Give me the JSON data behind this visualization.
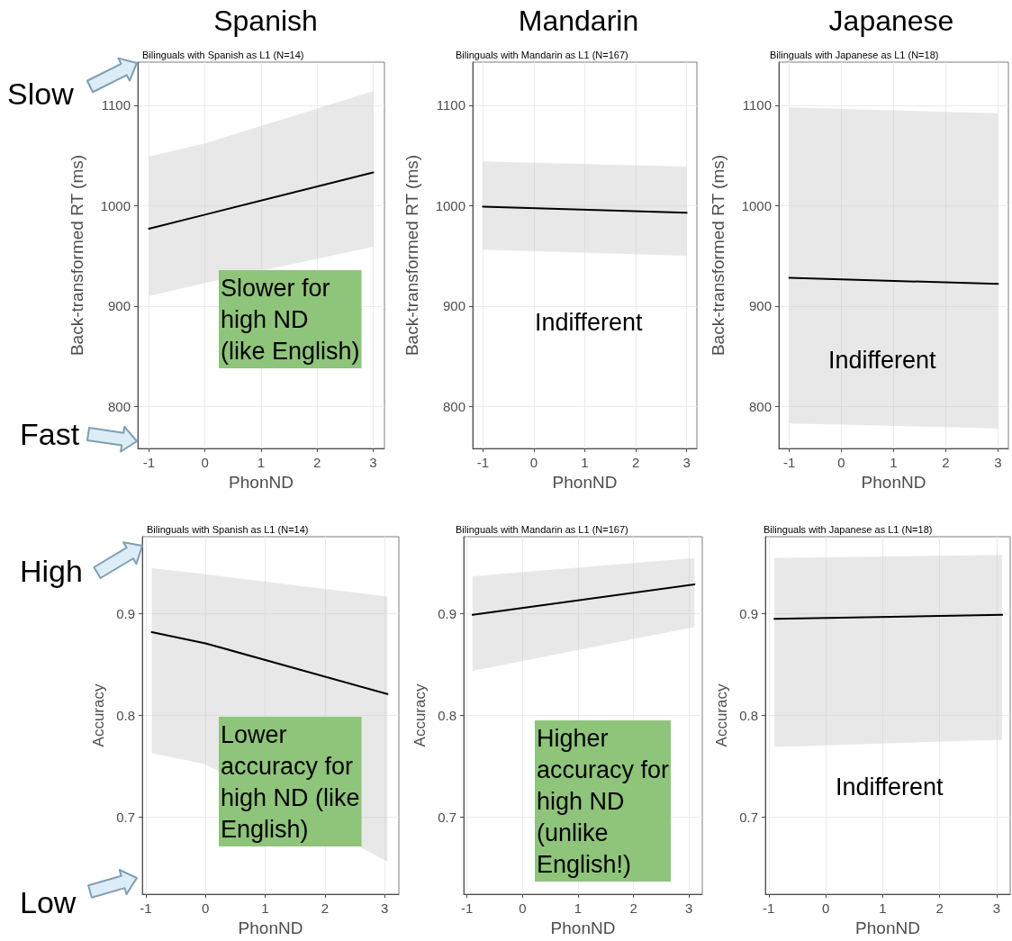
{
  "chart_data": [
    {
      "type": "line",
      "title": "Spanish",
      "subtitle": "Bilinguals with Spanish as L1 (N=14)",
      "xlabel": "PhonND",
      "ylabel": "Back-transformed RT (ms)",
      "x": [
        -1,
        0,
        3
      ],
      "series": [
        {
          "color": "#000000",
          "values": [
            977,
            991,
            1033
          ],
          "lower": [
            910,
            923,
            959
          ],
          "upper": [
            1049,
            1062,
            1114
          ]
        }
      ],
      "xlim": [
        -1.2,
        3.2
      ],
      "ylim": [
        758,
        1143
      ],
      "xticks": [
        -1,
        0,
        1,
        2,
        3
      ],
      "yticks": [
        800,
        900,
        1000,
        1100
      ],
      "grid": true,
      "marker": "none",
      "line_style": "solid",
      "annotations": [
        "Slow",
        "Fast",
        "Slower for\nhigh ND\n(like English)"
      ]
    },
    {
      "type": "line",
      "title": "Mandarin",
      "subtitle": "Bilinguals with Mandarin as L1 (N=167)",
      "xlabel": "PhonND",
      "ylabel": "Back-transformed RT (ms)",
      "x": [
        -1,
        3
      ],
      "series": [
        {
          "color": "#000000",
          "values": [
            999,
            993
          ],
          "lower": [
            956,
            950
          ],
          "upper": [
            1044,
            1039
          ]
        }
      ],
      "xlim": [
        -1.2,
        3.2
      ],
      "ylim": [
        758,
        1143
      ],
      "xticks": [
        -1,
        0,
        1,
        2,
        3
      ],
      "yticks": [
        800,
        900,
        1000,
        1100
      ],
      "grid": true,
      "marker": "none",
      "line_style": "solid",
      "annotations": [
        "Indifferent"
      ]
    },
    {
      "type": "line",
      "title": "Japanese",
      "subtitle": "Bilinguals with Japanese as L1 (N=18)",
      "xlabel": "PhonND",
      "ylabel": "Back-transformed RT (ms)",
      "x": [
        -1,
        3
      ],
      "series": [
        {
          "color": "#000000",
          "values": [
            928,
            922
          ],
          "lower": [
            783,
            778
          ],
          "upper": [
            1098,
            1092
          ]
        }
      ],
      "xlim": [
        -1.2,
        3.2
      ],
      "ylim": [
        758,
        1143
      ],
      "xticks": [
        -1,
        0,
        1,
        2,
        3
      ],
      "yticks": [
        800,
        900,
        1000,
        1100
      ],
      "grid": true,
      "marker": "none",
      "line_style": "solid",
      "annotations": [
        "Indifferent"
      ]
    },
    {
      "type": "line",
      "title": "Bilinguals with Spanish as L1 (N=14)",
      "xlabel": "PhonND",
      "ylabel": "Accuracy",
      "x": [
        -0.9,
        0,
        3.05
      ],
      "series": [
        {
          "color": "#000000",
          "values": [
            0.882,
            0.871,
            0.821
          ],
          "lower": [
            0.763,
            0.752,
            0.656
          ],
          "upper": [
            0.945,
            0.939,
            0.917
          ]
        }
      ],
      "xlim": [
        -1.06,
        3.24
      ],
      "ylim": [
        0.624,
        0.976
      ],
      "xticks": [
        -1,
        0,
        1,
        2,
        3
      ],
      "yticks": [
        0.7,
        0.8,
        0.9
      ],
      "grid": true,
      "marker": "none",
      "line_style": "solid",
      "annotations": [
        "High",
        "Low",
        "Lower\naccuracy for\nhigh ND (like\nEnglish)"
      ]
    },
    {
      "type": "line",
      "title": "Bilinguals with Mandarin as L1 (N=167)",
      "xlabel": "PhonND",
      "ylabel": "Accuracy",
      "x": [
        -0.9,
        3.1
      ],
      "series": [
        {
          "color": "#000000",
          "values": [
            0.899,
            0.929
          ],
          "lower": [
            0.844,
            0.887
          ],
          "upper": [
            0.937,
            0.955
          ]
        }
      ],
      "xlim": [
        -1.06,
        3.24
      ],
      "ylim": [
        0.624,
        0.976
      ],
      "xticks": [
        -1,
        0,
        1,
        2,
        3
      ],
      "yticks": [
        0.7,
        0.8,
        0.9
      ],
      "grid": true,
      "marker": "none",
      "line_style": "solid",
      "annotations": [
        "Higher\naccuracy for\nhigh ND\n(unlike\nEnglish!)"
      ]
    },
    {
      "type": "line",
      "title": "Bilinguals with Japanese as L1 (N=18)",
      "xlabel": "PhonND",
      "ylabel": "Accuracy",
      "x": [
        -0.9,
        3.1
      ],
      "series": [
        {
          "color": "#000000",
          "values": [
            0.895,
            0.899
          ],
          "lower": [
            0.769,
            0.776
          ],
          "upper": [
            0.955,
            0.958
          ]
        }
      ],
      "xlim": [
        -1.06,
        3.24
      ],
      "ylim": [
        0.624,
        0.976
      ],
      "xticks": [
        -1,
        0,
        1,
        2,
        3
      ],
      "yticks": [
        0.7,
        0.8,
        0.9
      ],
      "grid": true,
      "marker": "none",
      "line_style": "solid",
      "annotations": [
        "Indifferent"
      ]
    }
  ]
}
